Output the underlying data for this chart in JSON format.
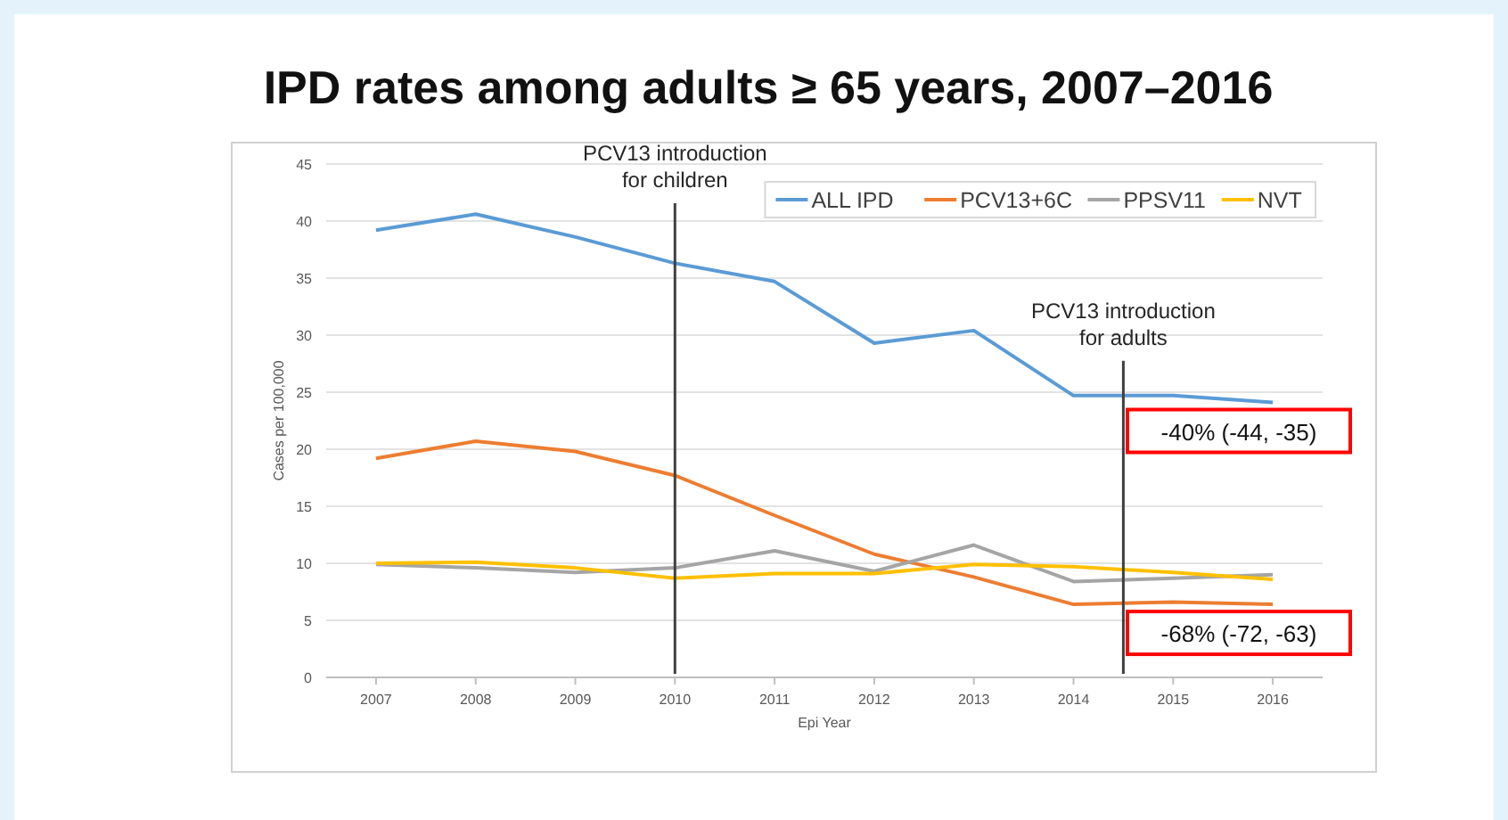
{
  "chart_data": {
    "type": "line",
    "title": "IPD rates among adults ≥ 65 years, 2007–2016",
    "xlabel": "Epi Year",
    "ylabel": "Cases per 100,000",
    "x": [
      2007,
      2008,
      2009,
      2010,
      2011,
      2012,
      2013,
      2014,
      2015,
      2016
    ],
    "xlim": [
      2006.5,
      2016.5
    ],
    "xticks": [
      2007,
      2008,
      2009,
      2010,
      2011,
      2012,
      2013,
      2014,
      2015,
      2016
    ],
    "ylim": [
      0,
      45
    ],
    "yticks": [
      0,
      5,
      10,
      15,
      20,
      25,
      30,
      35,
      40,
      45
    ],
    "grid": "y",
    "legend": "top right",
    "marker": "none",
    "line_style": "solid",
    "series": [
      {
        "name": "ALL IPD",
        "color": "#5b9bd5",
        "values": [
          39.2,
          40.6,
          38.6,
          36.3,
          34.7,
          29.3,
          30.4,
          24.7,
          24.7,
          24.1
        ]
      },
      {
        "name": "PCV13+6C",
        "color": "#ed7d31",
        "values": [
          19.2,
          20.7,
          19.8,
          17.7,
          14.2,
          10.8,
          8.8,
          6.4,
          6.6,
          6.4
        ]
      },
      {
        "name": "PPSV11",
        "color": "#a5a5a5",
        "values": [
          9.9,
          9.6,
          9.2,
          9.6,
          11.1,
          9.3,
          11.6,
          8.4,
          8.7,
          9.0
        ]
      },
      {
        "name": "NVT",
        "color": "#ffc000",
        "values": [
          10.0,
          10.1,
          9.6,
          8.7,
          9.1,
          9.1,
          9.9,
          9.7,
          9.2,
          8.6
        ]
      }
    ],
    "ref_lines": [
      {
        "axis": "x",
        "value": 2010,
        "label": "PCV13 introduction\nfor children",
        "color": "#404040"
      },
      {
        "axis": "x",
        "value": 2014.5,
        "label": "PCV13 introduction\nfor adults",
        "color": "#404040"
      }
    ],
    "annotations": [
      "-40% (-44, -35)",
      "-68% (-72, -63)"
    ]
  }
}
